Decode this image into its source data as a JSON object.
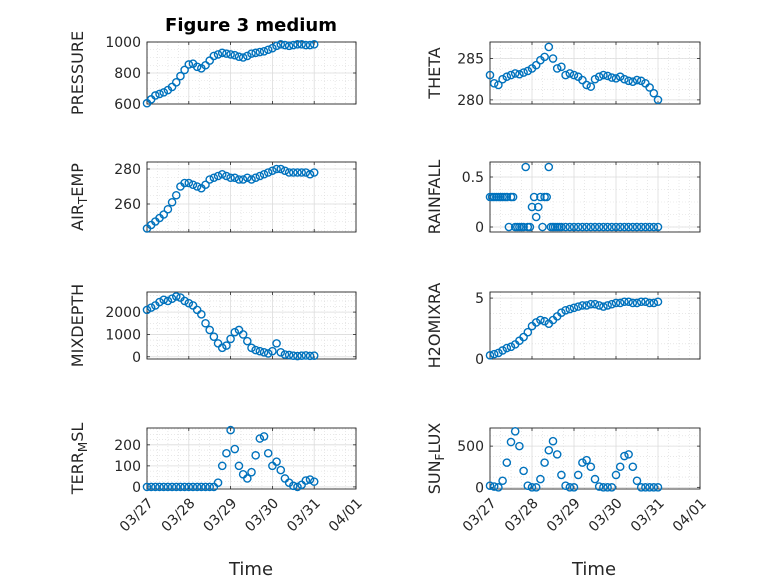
{
  "title": "Figure 3 medium",
  "xlabel": "Time",
  "x_ticks": [
    "03/27",
    "03/28",
    "03/29",
    "03/30",
    "03/31",
    "04/01"
  ],
  "x_range": [
    "03/27",
    "04/01"
  ],
  "marker_color": "#0072BD",
  "chart_data": [
    {
      "type": "scatter",
      "name": "pressure",
      "ylabel": "PRESSURE",
      "ylim": [
        600,
        1000
      ],
      "yticks": [
        600,
        800,
        1000
      ],
      "grid": true,
      "x": [
        0,
        0.1,
        0.2,
        0.3,
        0.4,
        0.5,
        0.6,
        0.7,
        0.8,
        0.9,
        1.0,
        1.1,
        1.2,
        1.3,
        1.4,
        1.5,
        1.6,
        1.7,
        1.8,
        1.9,
        2.0,
        2.1,
        2.2,
        2.3,
        2.4,
        2.5,
        2.6,
        2.7,
        2.8,
        2.9,
        3.0,
        3.1,
        3.2,
        3.3,
        3.4,
        3.5,
        3.6,
        3.7,
        3.8,
        3.9,
        4.0
      ],
      "y": [
        605,
        630,
        655,
        665,
        675,
        690,
        710,
        740,
        780,
        820,
        855,
        860,
        840,
        830,
        850,
        880,
        910,
        920,
        930,
        925,
        920,
        915,
        905,
        900,
        910,
        925,
        930,
        935,
        940,
        950,
        960,
        975,
        985,
        980,
        975,
        980,
        985,
        985,
        980,
        980,
        985
      ]
    },
    {
      "type": "scatter",
      "name": "theta",
      "ylabel": "THETA",
      "ylim": [
        279.5,
        287
      ],
      "yticks": [
        280,
        285
      ],
      "grid": true,
      "x": [
        0,
        0.1,
        0.2,
        0.3,
        0.4,
        0.5,
        0.6,
        0.7,
        0.8,
        0.9,
        1.0,
        1.1,
        1.2,
        1.3,
        1.4,
        1.5,
        1.6,
        1.7,
        1.8,
        1.9,
        2.0,
        2.1,
        2.2,
        2.3,
        2.4,
        2.5,
        2.6,
        2.7,
        2.8,
        2.9,
        3.0,
        3.1,
        3.2,
        3.3,
        3.4,
        3.5,
        3.6,
        3.7,
        3.8,
        3.9,
        4.0
      ],
      "y": [
        283,
        282,
        281.8,
        282.5,
        282.8,
        283,
        283.2,
        283.1,
        283.3,
        283.5,
        283.8,
        284.2,
        284.8,
        285.2,
        286.4,
        285,
        283.8,
        284,
        283,
        283.2,
        283,
        282.8,
        282.4,
        281.8,
        281.6,
        282.5,
        282.8,
        283,
        282.9,
        282.7,
        282.6,
        282.8,
        282.5,
        282.3,
        282.2,
        282.4,
        282.3,
        282,
        281.5,
        280.8,
        280
      ]
    },
    {
      "type": "scatter",
      "name": "air_temp",
      "ylabel": "AIR_TEMP",
      "ylim": [
        244,
        284
      ],
      "yticks": [
        260,
        280
      ],
      "grid": true,
      "x": [
        0,
        0.1,
        0.2,
        0.3,
        0.4,
        0.5,
        0.6,
        0.7,
        0.8,
        0.9,
        1.0,
        1.1,
        1.2,
        1.3,
        1.4,
        1.5,
        1.6,
        1.7,
        1.8,
        1.9,
        2.0,
        2.1,
        2.2,
        2.3,
        2.4,
        2.5,
        2.6,
        2.7,
        2.8,
        2.9,
        3.0,
        3.1,
        3.2,
        3.3,
        3.4,
        3.5,
        3.6,
        3.7,
        3.8,
        3.9,
        4.0
      ],
      "y": [
        246,
        248,
        250,
        252,
        254,
        257,
        261,
        265,
        270,
        272,
        272,
        271,
        270,
        269,
        271,
        274,
        275,
        276,
        277,
        276,
        275,
        275,
        274,
        274,
        275,
        274,
        275,
        276,
        277,
        278,
        279,
        280,
        280,
        279,
        278,
        278,
        278,
        278,
        278,
        277,
        278
      ]
    },
    {
      "type": "scatter",
      "name": "rainfall",
      "ylabel": "RAINFALL",
      "ylim": [
        -0.05,
        0.65
      ],
      "yticks": [
        0,
        0.5
      ],
      "grid": true,
      "x": [
        0,
        0.05,
        0.1,
        0.15,
        0.2,
        0.25,
        0.3,
        0.35,
        0.4,
        0.45,
        0.5,
        0.55,
        0.6,
        0.65,
        0.7,
        0.75,
        0.8,
        0.85,
        0.9,
        0.95,
        1.0,
        1.05,
        1.1,
        1.15,
        1.2,
        1.25,
        1.3,
        1.35,
        1.4,
        1.45,
        1.5,
        1.55,
        1.6,
        1.65,
        1.7,
        1.8,
        1.9,
        2.0,
        2.1,
        2.2,
        2.3,
        2.4,
        2.5,
        2.6,
        2.7,
        2.8,
        2.9,
        3.0,
        3.1,
        3.2,
        3.3,
        3.4,
        3.5,
        3.6,
        3.7,
        3.8,
        3.9,
        4.0
      ],
      "y": [
        0.3,
        0.3,
        0.3,
        0.3,
        0.3,
        0.3,
        0.3,
        0.3,
        0.3,
        0,
        0.3,
        0.3,
        0,
        0,
        0,
        0,
        0,
        0.6,
        0,
        0,
        0.2,
        0.3,
        0.1,
        0.2,
        0.3,
        0,
        0.3,
        0.3,
        0.6,
        0,
        0,
        0,
        0,
        0,
        0,
        0,
        0,
        0,
        0,
        0,
        0,
        0,
        0,
        0,
        0,
        0,
        0,
        0,
        0,
        0,
        0,
        0,
        0,
        0,
        0,
        0,
        0,
        0
      ]
    },
    {
      "type": "scatter",
      "name": "mixdepth",
      "ylabel": "MIXDEPTH",
      "ylim": [
        -100,
        2900
      ],
      "yticks": [
        0,
        1000,
        2000
      ],
      "grid": true,
      "x": [
        0,
        0.1,
        0.2,
        0.3,
        0.4,
        0.5,
        0.6,
        0.7,
        0.8,
        0.9,
        1.0,
        1.1,
        1.2,
        1.3,
        1.4,
        1.5,
        1.6,
        1.7,
        1.8,
        1.9,
        2.0,
        2.1,
        2.2,
        2.3,
        2.4,
        2.5,
        2.6,
        2.7,
        2.8,
        2.9,
        3.0,
        3.1,
        3.2,
        3.3,
        3.4,
        3.5,
        3.6,
        3.7,
        3.8,
        3.9,
        4.0
      ],
      "y": [
        2100,
        2200,
        2300,
        2450,
        2550,
        2500,
        2600,
        2700,
        2650,
        2500,
        2400,
        2300,
        2100,
        1900,
        1500,
        1200,
        900,
        600,
        400,
        500,
        800,
        1100,
        1200,
        1000,
        700,
        400,
        300,
        250,
        200,
        150,
        250,
        600,
        200,
        100,
        80,
        50,
        30,
        50,
        60,
        40,
        50
      ]
    },
    {
      "type": "scatter",
      "name": "h2omixra",
      "ylabel": "H2OMIXRA",
      "ylim": [
        0,
        5.5
      ],
      "yticks": [
        0,
        5
      ],
      "grid": true,
      "x": [
        0,
        0.1,
        0.2,
        0.3,
        0.4,
        0.5,
        0.6,
        0.7,
        0.8,
        0.9,
        1.0,
        1.1,
        1.2,
        1.3,
        1.4,
        1.5,
        1.6,
        1.7,
        1.8,
        1.9,
        2.0,
        2.1,
        2.2,
        2.3,
        2.4,
        2.5,
        2.6,
        2.7,
        2.8,
        2.9,
        3.0,
        3.1,
        3.2,
        3.3,
        3.4,
        3.5,
        3.6,
        3.7,
        3.8,
        3.9,
        4.0
      ],
      "y": [
        0.3,
        0.4,
        0.5,
        0.7,
        0.9,
        1.0,
        1.2,
        1.5,
        1.8,
        2.2,
        2.7,
        3.0,
        3.2,
        3.1,
        2.9,
        3.2,
        3.5,
        3.8,
        4.0,
        4.1,
        4.2,
        4.3,
        4.4,
        4.4,
        4.5,
        4.5,
        4.4,
        4.3,
        4.4,
        4.5,
        4.6,
        4.6,
        4.7,
        4.7,
        4.6,
        4.6,
        4.7,
        4.7,
        4.6,
        4.6,
        4.7
      ]
    },
    {
      "type": "scatter",
      "name": "terr_msl",
      "ylabel": "TERR_MSL",
      "ylim": [
        -10,
        280
      ],
      "yticks": [
        0,
        100,
        200
      ],
      "grid": true,
      "x": [
        0,
        0.1,
        0.2,
        0.3,
        0.4,
        0.5,
        0.6,
        0.7,
        0.8,
        0.9,
        1.0,
        1.1,
        1.2,
        1.3,
        1.4,
        1.5,
        1.6,
        1.7,
        1.8,
        1.9,
        2.0,
        2.1,
        2.2,
        2.3,
        2.4,
        2.5,
        2.6,
        2.7,
        2.8,
        2.9,
        3.0,
        3.1,
        3.2,
        3.3,
        3.4,
        3.5,
        3.6,
        3.7,
        3.8,
        3.9,
        4.0
      ],
      "y": [
        0,
        0,
        0,
        0,
        0,
        0,
        0,
        0,
        0,
        0,
        0,
        0,
        0,
        0,
        0,
        0,
        0,
        20,
        100,
        160,
        270,
        180,
        100,
        60,
        40,
        70,
        150,
        230,
        240,
        160,
        100,
        120,
        80,
        40,
        20,
        5,
        0,
        10,
        30,
        35,
        25
      ]
    },
    {
      "type": "scatter",
      "name": "sun_flux",
      "ylabel": "SUN_FLUX",
      "ylim": [
        -20,
        720
      ],
      "yticks": [
        0,
        500
      ],
      "grid": true,
      "x": [
        0,
        0.1,
        0.2,
        0.3,
        0.4,
        0.5,
        0.6,
        0.7,
        0.8,
        0.9,
        1.0,
        1.1,
        1.2,
        1.3,
        1.4,
        1.5,
        1.6,
        1.7,
        1.8,
        1.9,
        2.0,
        2.1,
        2.2,
        2.3,
        2.4,
        2.5,
        2.6,
        2.7,
        2.8,
        2.9,
        3.0,
        3.1,
        3.2,
        3.3,
        3.4,
        3.5,
        3.6,
        3.7,
        3.8,
        3.9,
        4.0
      ],
      "y": [
        20,
        10,
        0,
        80,
        300,
        550,
        680,
        500,
        200,
        20,
        0,
        0,
        100,
        300,
        450,
        560,
        400,
        150,
        20,
        0,
        0,
        150,
        300,
        330,
        250,
        100,
        10,
        0,
        0,
        0,
        150,
        250,
        380,
        400,
        250,
        80,
        0,
        0,
        0,
        0,
        0
      ]
    }
  ]
}
